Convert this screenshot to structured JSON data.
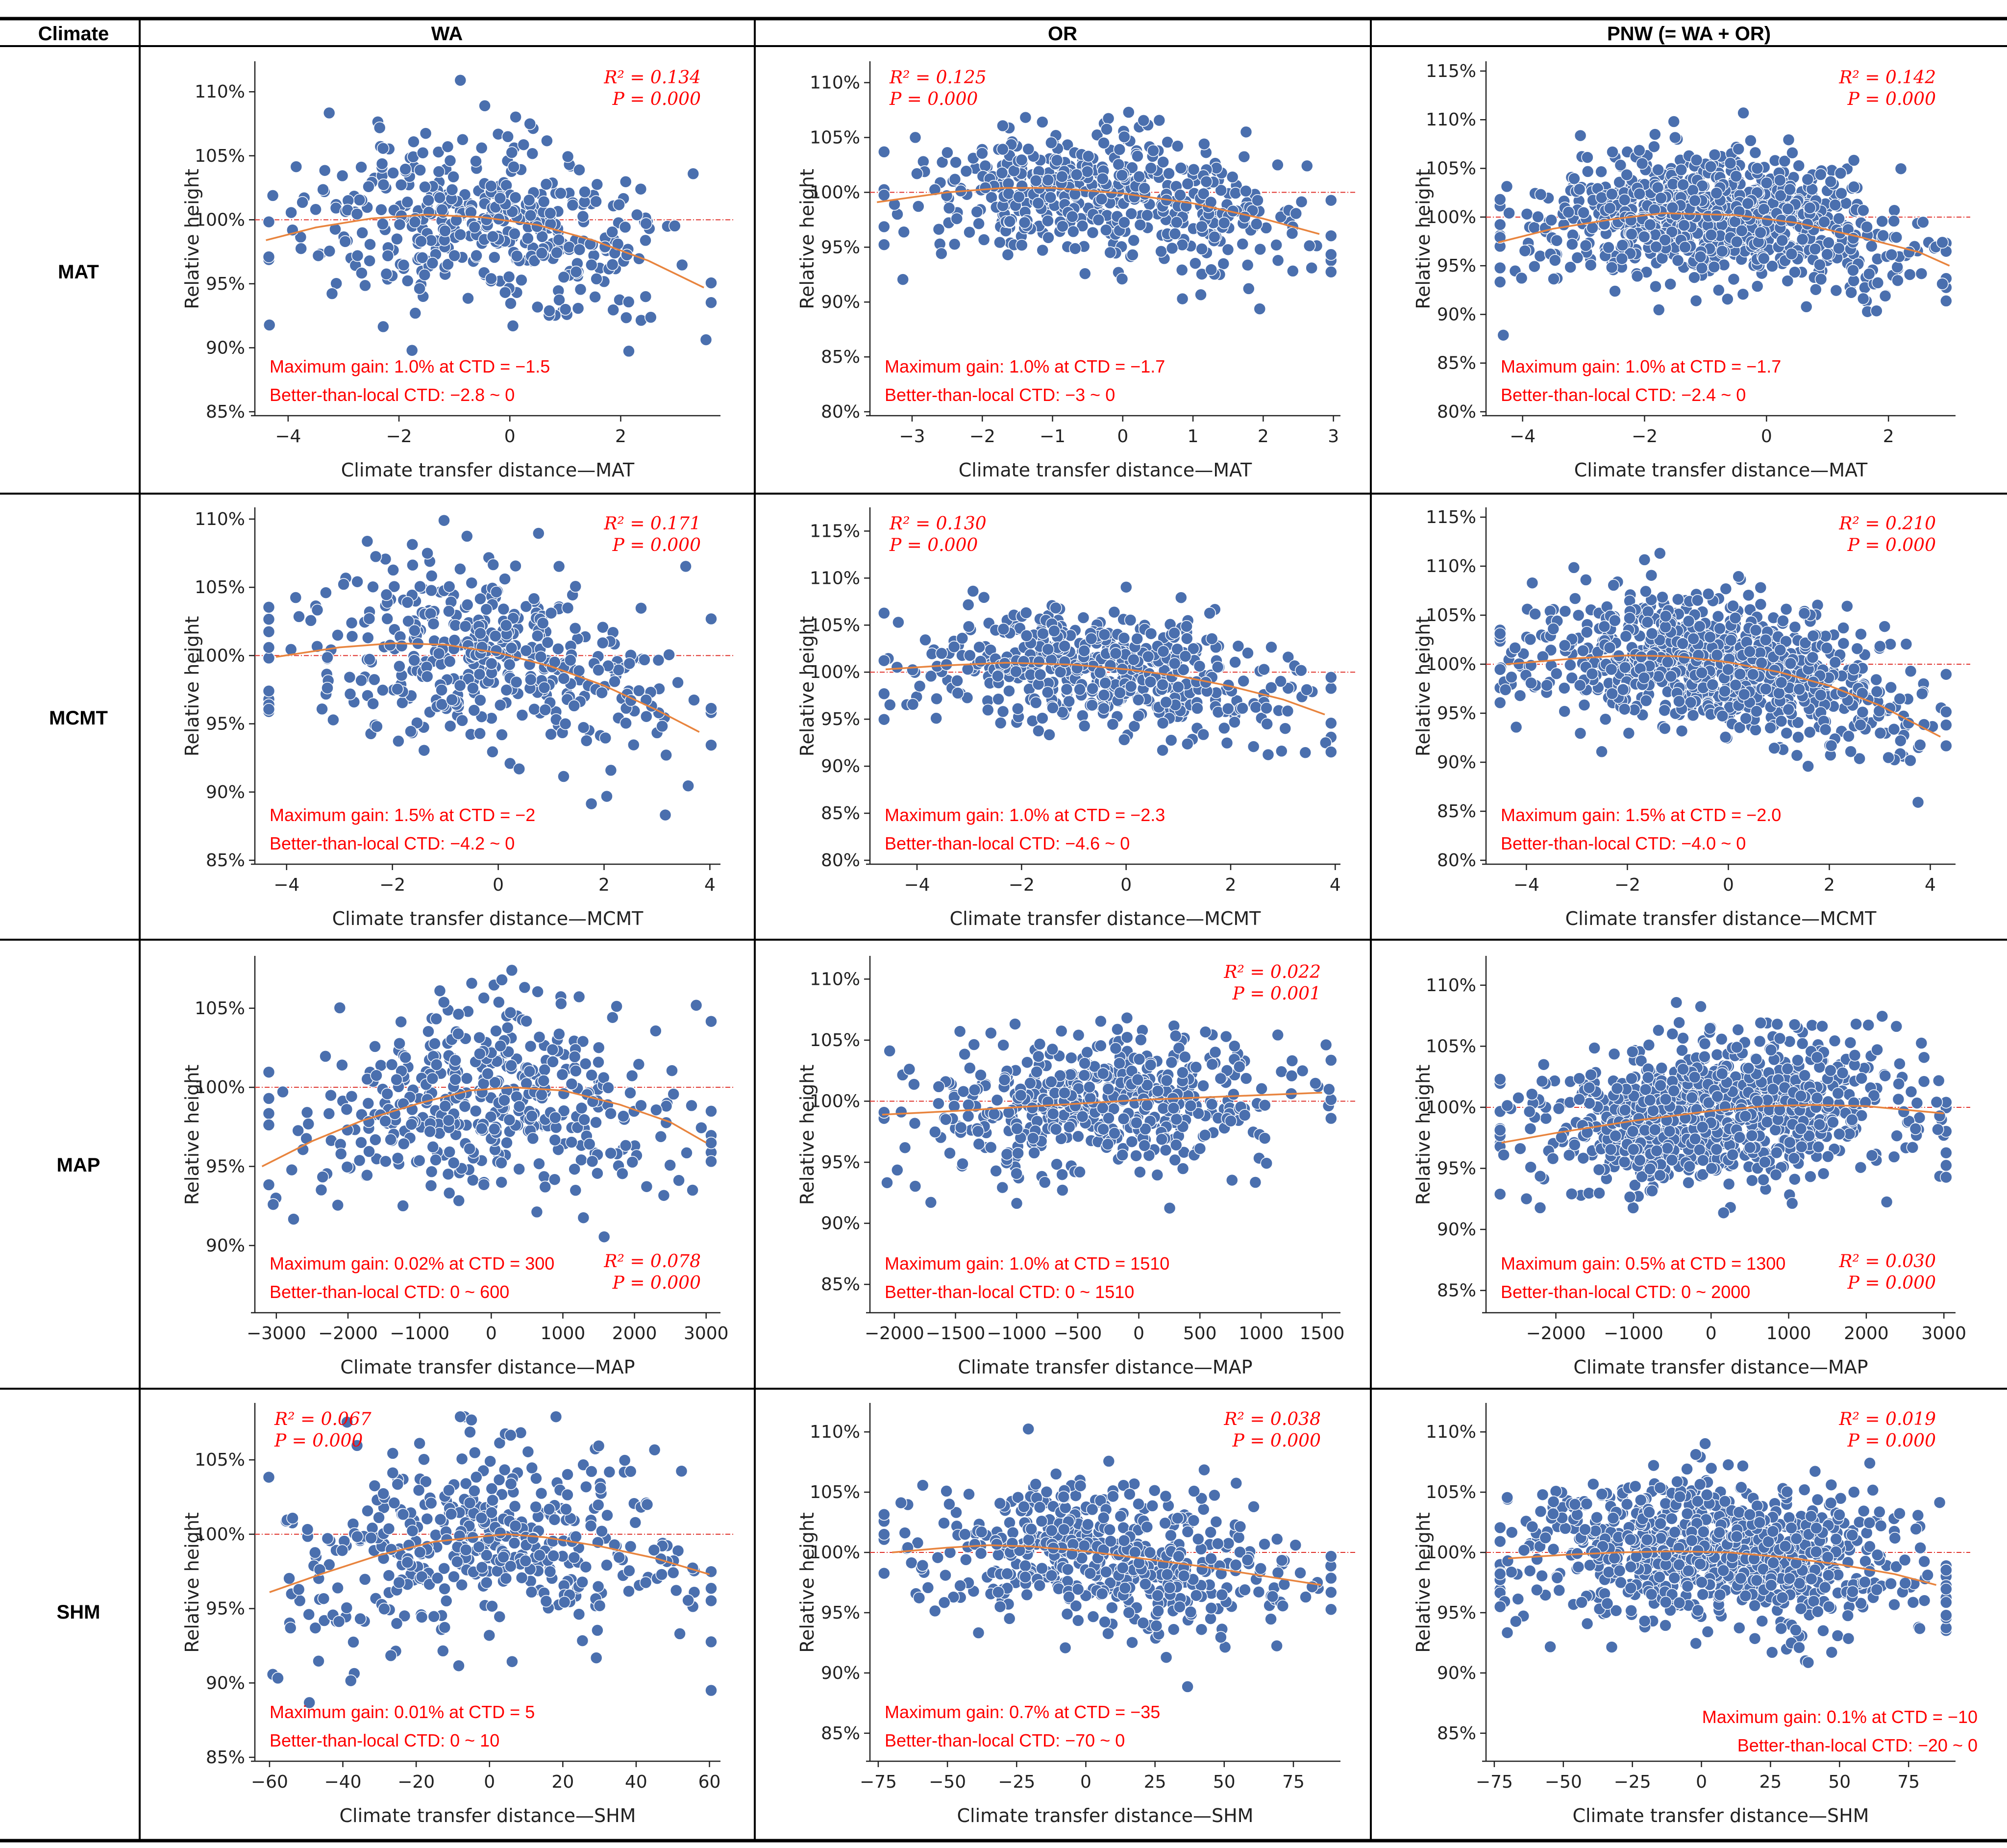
{
  "table": {
    "corner": "Climate",
    "columns": [
      "WA",
      "OR",
      "PNW (= WA + OR)"
    ],
    "rows": [
      "MAT",
      "MCMT",
      "MAP",
      "SHM"
    ]
  },
  "colors": {
    "point": "#4a6fae",
    "fit": "#e8843e",
    "reference": "#e0302a",
    "annotation": "#ff0000"
  },
  "chart_data": [
    {
      "type": "scatter",
      "region": "WA",
      "variable": "MAT",
      "ylabel": "Relative height",
      "xlabel": "Climate transfer distance—MAT",
      "xlim": [
        -4.6,
        3.8
      ],
      "ylim": [
        85,
        112
      ],
      "xticks": [
        -4,
        -2,
        0,
        2
      ],
      "yticks": [
        85,
        90,
        95,
        100,
        105,
        110
      ],
      "stats": {
        "r2": "R² = 0.134",
        "p": "P = 0.000",
        "pos": "top-right"
      },
      "annotation": {
        "gain": "Maximum gain: 1.0% at CTD = −1.5",
        "range": "Better-than-local CTD: −2.8 ~ 0",
        "pos": "bottom-left"
      },
      "fit": {
        "x": [
          -4.4,
          -3.5,
          -2.5,
          -1.5,
          -0.5,
          0.5,
          1.5,
          2.5,
          3.5
        ],
        "y": [
          98.4,
          99.4,
          100.1,
          100.4,
          100.2,
          99.6,
          98.4,
          96.8,
          94.7
        ]
      },
      "n_points": 430,
      "point_mean": 100,
      "point_sd": 3.2
    },
    {
      "type": "scatter",
      "region": "OR",
      "variable": "MAT",
      "ylabel": "Relative height",
      "xlabel": "Climate transfer distance—MAT",
      "xlim": [
        -3.6,
        3.1
      ],
      "ylim": [
        80,
        111.5
      ],
      "xticks": [
        -3,
        -2,
        -1,
        0,
        1,
        2,
        3
      ],
      "yticks": [
        80,
        85,
        90,
        95,
        100,
        105,
        110
      ],
      "stats": {
        "r2": "R² = 0.125",
        "p": "P = 0.000",
        "pos": "top-left"
      },
      "annotation": {
        "gain": "Maximum gain: 1.0% at CTD = −1.7",
        "range": "Better-than-local CTD: −3 ~ 0",
        "pos": "bottom-left"
      },
      "fit": {
        "x": [
          -3.5,
          -2.5,
          -1.7,
          -1,
          0,
          1,
          2,
          2.8
        ],
        "y": [
          99.1,
          100,
          100.4,
          100.4,
          99.9,
          99,
          97.6,
          96.2
        ],
        "ref": 100
      },
      "n_points": 500,
      "point_mean": 100,
      "point_sd": 3.0
    },
    {
      "type": "scatter",
      "region": "PNW (= WA + OR)",
      "variable": "MAT",
      "ylabel": "Relative height",
      "xlabel": "Climate transfer distance—MAT",
      "xlim": [
        -4.6,
        3.1
      ],
      "ylim": [
        80,
        115.5
      ],
      "xticks": [
        -4,
        -2,
        0,
        2
      ],
      "yticks": [
        80,
        85,
        90,
        95,
        100,
        105,
        110,
        115
      ],
      "stats": {
        "r2": "R² = 0.142",
        "p": "P = 0.000",
        "pos": "top-right"
      },
      "annotation": {
        "gain": "Maximum gain: 1.0% at CTD = −1.7",
        "range": "Better-than-local CTD: −2.4 ~ 0",
        "pos": "bottom-left"
      },
      "fit": {
        "x": [
          -4.4,
          -3.5,
          -2.5,
          -1.7,
          -0.5,
          0.5,
          1.5,
          2.5,
          3
        ],
        "y": [
          97.4,
          98.8,
          99.8,
          100.4,
          100.2,
          99.4,
          98,
          96.4,
          95
        ]
      },
      "n_points": 900,
      "point_mean": 100,
      "point_sd": 3.1
    },
    {
      "type": "scatter",
      "region": "WA",
      "variable": "MCMT",
      "ylabel": "Relative height",
      "xlabel": "Climate transfer distance—MCMT",
      "xlim": [
        -4.6,
        4.2
      ],
      "ylim": [
        85,
        110.5
      ],
      "xticks": [
        -4,
        -2,
        0,
        2,
        4
      ],
      "yticks": [
        85,
        90,
        95,
        100,
        105,
        110
      ],
      "stats": {
        "r2": "R² = 0.171",
        "p": "P = 0.000",
        "pos": "top-right"
      },
      "annotation": {
        "gain": "Maximum gain: 1.5% at CTD = −2",
        "range": "Better-than-local CTD: −4.2 ~ 0",
        "pos": "bottom-left"
      },
      "fit": {
        "x": [
          -4.2,
          -3,
          -2,
          -1,
          0,
          1,
          2,
          3,
          3.8
        ],
        "y": [
          99.9,
          100.6,
          100.9,
          100.8,
          100.2,
          99.2,
          97.8,
          96,
          94.4
        ]
      },
      "n_points": 430,
      "point_mean": 100,
      "point_sd": 3.3
    },
    {
      "type": "scatter",
      "region": "OR",
      "variable": "MCMT",
      "ylabel": "Relative height",
      "xlabel": "Climate transfer distance—MCMT",
      "xlim": [
        -4.9,
        4.1
      ],
      "ylim": [
        80,
        117
      ],
      "xticks": [
        -4,
        -2,
        0,
        2,
        4
      ],
      "yticks": [
        80,
        85,
        90,
        95,
        100,
        105,
        110,
        115
      ],
      "stats": {
        "r2": "R² = 0.130",
        "p": "P = 0.000",
        "pos": "top-left"
      },
      "annotation": {
        "gain": "Maximum gain: 1.0% at CTD = −2.3",
        "range": "Better-than-local CTD: −4.6 ~ 0",
        "pos": "bottom-left"
      },
      "fit": {
        "x": [
          -4.6,
          -3.5,
          -2.3,
          -1,
          0,
          1,
          2,
          3,
          3.8
        ],
        "y": [
          100.3,
          100.7,
          101,
          100.8,
          100.3,
          99.6,
          98.5,
          97.1,
          95.5
        ]
      },
      "n_points": 520,
      "point_mean": 99.5,
      "point_sd": 3.0
    },
    {
      "type": "scatter",
      "region": "PNW (= WA + OR)",
      "variable": "MCMT",
      "ylabel": "Relative height",
      "xlabel": "Climate transfer distance—MCMT",
      "xlim": [
        -4.8,
        4.5
      ],
      "ylim": [
        80,
        115.5
      ],
      "xticks": [
        -4,
        -2,
        0,
        2,
        4
      ],
      "yticks": [
        80,
        85,
        90,
        95,
        100,
        105,
        110,
        115
      ],
      "stats": {
        "r2": "R² = 0.210",
        "p": "P = 0.000",
        "pos": "top-right"
      },
      "annotation": {
        "gain": "Maximum gain: 1.5% at CTD = −2.0",
        "range": "Better-than-local CTD: −4.0 ~ 0",
        "pos": "bottom-left"
      },
      "fit": {
        "x": [
          -4.4,
          -3,
          -2,
          -1,
          0,
          1,
          2,
          3,
          4.2
        ],
        "y": [
          100,
          100.6,
          100.9,
          100.8,
          100.2,
          99.2,
          97.8,
          95.8,
          92.6
        ]
      },
      "n_points": 950,
      "point_mean": 99.8,
      "point_sd": 3.2
    },
    {
      "type": "scatter",
      "region": "WA",
      "variable": "MAP",
      "ylabel": "Relative height",
      "xlabel": "Climate transfer distance—MAP",
      "xlim": [
        -3300,
        3200
      ],
      "ylim": [
        86,
        108
      ],
      "xticks": [
        -3000,
        -2000,
        -1000,
        0,
        1000,
        2000,
        3000
      ],
      "yticks": [
        90,
        95,
        100,
        105
      ],
      "stats": {
        "r2": "R² = 0.078",
        "p": "P = 0.000",
        "pos": "bottom-right"
      },
      "annotation": {
        "gain": "Maximum gain: 0.02% at CTD = 300",
        "range": "Better-than-local CTD: 0 ~ 600",
        "pos": "bottom-left"
      },
      "fit": {
        "x": [
          -3200,
          -2500,
          -1800,
          -1000,
          -300,
          300,
          1000,
          1800,
          2500,
          3000
        ],
        "y": [
          95,
          96.6,
          97.9,
          99,
          99.8,
          100,
          99.8,
          98.9,
          97.8,
          96.5
        ]
      },
      "n_points": 430,
      "point_mean": 99.8,
      "point_sd": 3.0
    },
    {
      "type": "scatter",
      "region": "OR",
      "variable": "MAP",
      "ylabel": "Relative height",
      "xlabel": "Climate transfer distance—MAP",
      "xlim": [
        -2200,
        1650
      ],
      "ylim": [
        83,
        111.5
      ],
      "xticks": [
        -2000,
        -1500,
        -1000,
        -500,
        0,
        500,
        1000,
        1500
      ],
      "yticks": [
        85,
        90,
        95,
        100,
        105,
        110
      ],
      "stats": {
        "r2": "R² = 0.022",
        "p": "P = 0.001",
        "pos": "top-right"
      },
      "annotation": {
        "gain": "Maximum gain: 1.0% at CTD = 1510",
        "range": "Better-than-local CTD: 0 ~ 1510",
        "pos": "bottom-left"
      },
      "fit": {
        "x": [
          -2100,
          -1500,
          -1000,
          -500,
          0,
          500,
          1000,
          1500
        ],
        "y": [
          98.9,
          99.2,
          99.5,
          99.8,
          100.1,
          100.3,
          100.5,
          100.7
        ]
      },
      "n_points": 520,
      "point_mean": 100,
      "point_sd": 2.7
    },
    {
      "type": "scatter",
      "region": "PNW (= WA + OR)",
      "variable": "MAP",
      "ylabel": "Relative height",
      "xlabel": "Climate transfer distance—MAP",
      "xlim": [
        -2900,
        3150
      ],
      "ylim": [
        83.5,
        112
      ],
      "xticks": [
        -2000,
        -1000,
        0,
        1000,
        2000,
        3000
      ],
      "yticks": [
        85,
        90,
        95,
        100,
        105,
        110
      ],
      "stats": {
        "r2": "R² = 0.030",
        "p": "P = 0.000",
        "pos": "bottom-right"
      },
      "annotation": {
        "gain": "Maximum gain: 0.5% at CTD = 1300",
        "range": "Better-than-local CTD: 0 ~ 2000",
        "pos": "bottom-left"
      },
      "fit": {
        "x": [
          -2700,
          -2000,
          -1000,
          0,
          700,
          1300,
          2000,
          3000
        ],
        "y": [
          97.1,
          97.9,
          98.9,
          99.7,
          100.1,
          100.2,
          100.1,
          99.5
        ]
      },
      "n_points": 950,
      "point_mean": 99.8,
      "point_sd": 2.9
    },
    {
      "type": "scatter",
      "region": "WA",
      "variable": "SHM",
      "ylabel": "Relative height",
      "xlabel": "Climate transfer distance—SHM",
      "xlim": [
        -64,
        63
      ],
      "ylim": [
        85,
        108.5
      ],
      "xticks": [
        -60,
        -40,
        -20,
        0,
        20,
        40,
        60
      ],
      "yticks": [
        85,
        90,
        95,
        100,
        105
      ],
      "stats": {
        "r2": "R² = 0.067",
        "p": "P = 0.000",
        "pos": "top-left"
      },
      "annotation": {
        "gain": "Maximum gain: 0.01% at CTD = 5",
        "range": "Better-than-local CTD: 0 ~ 10",
        "pos": "bottom-left"
      },
      "fit": {
        "x": [
          -60,
          -45,
          -30,
          -15,
          0,
          5,
          15,
          30,
          45,
          60
        ],
        "y": [
          96.1,
          97.4,
          98.6,
          99.5,
          99.9,
          100,
          99.8,
          99.2,
          98.4,
          97.3
        ]
      },
      "n_points": 430,
      "point_mean": 99.8,
      "point_sd": 3.1
    },
    {
      "type": "scatter",
      "region": "OR",
      "variable": "SHM",
      "ylabel": "Relative height",
      "xlabel": "Climate transfer distance—SHM",
      "xlim": [
        -78,
        92
      ],
      "ylim": [
        83,
        112
      ],
      "xticks": [
        -75,
        -50,
        -25,
        0,
        25,
        50,
        75
      ],
      "yticks": [
        85,
        90,
        95,
        100,
        105,
        110
      ],
      "stats": {
        "r2": "R² = 0.038",
        "p": "P = 0.000",
        "pos": "top-right"
      },
      "annotation": {
        "gain": "Maximum gain: 0.7% at CTD = −35",
        "range": "Better-than-local CTD: −70 ~ 0",
        "pos": "bottom-left"
      },
      "fit": {
        "x": [
          -70,
          -50,
          -35,
          -20,
          0,
          20,
          40,
          60,
          85
        ],
        "y": [
          100,
          100.4,
          100.6,
          100.5,
          100.1,
          99.5,
          98.9,
          98.2,
          97.3
        ]
      },
      "n_points": 520,
      "point_mean": 99.8,
      "point_sd": 2.8
    },
    {
      "type": "scatter",
      "region": "PNW (= WA + OR)",
      "variable": "SHM",
      "ylabel": "Relative height",
      "xlabel": "Climate transfer distance—SHM",
      "xlim": [
        -78,
        92
      ],
      "ylim": [
        83,
        112
      ],
      "xticks": [
        -75,
        -50,
        -25,
        0,
        25,
        50,
        75
      ],
      "yticks": [
        85,
        90,
        95,
        100,
        105,
        110
      ],
      "stats": {
        "r2": "R² = 0.019",
        "p": "P = 0.000",
        "pos": "top-right"
      },
      "annotation": {
        "gain": "Maximum gain: 0.1% at CTD = −10",
        "range": "Better-than-local CTD: −20 ~ 0",
        "pos": "bottom-right"
      },
      "fit": {
        "x": [
          -70,
          -50,
          -30,
          -10,
          10,
          30,
          50,
          70,
          85
        ],
        "y": [
          99.5,
          99.8,
          100,
          100.1,
          100,
          99.6,
          99,
          98.2,
          97.3
        ]
      },
      "n_points": 950,
      "point_mean": 99.8,
      "point_sd": 2.9
    }
  ]
}
